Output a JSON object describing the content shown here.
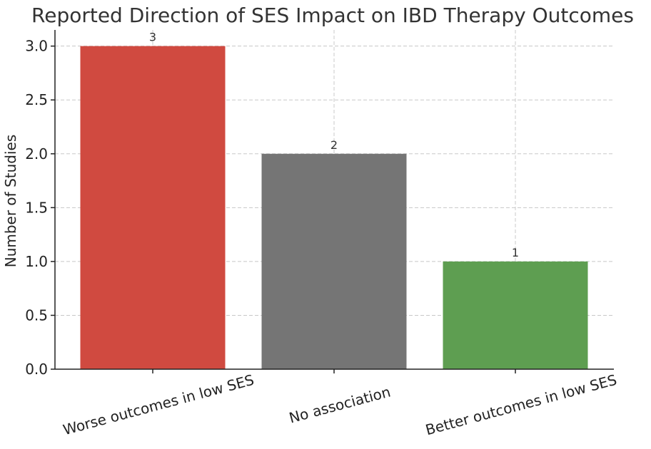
{
  "chart_data": {
    "type": "bar",
    "title": "Reported Direction of SES Impact on IBD Therapy Outcomes",
    "xlabel": "",
    "ylabel": "Number of Studies",
    "categories": [
      "Worse outcomes in low SES",
      "No association",
      "Better outcomes in low SES"
    ],
    "values": [
      3,
      2,
      1
    ],
    "data_labels": [
      "3",
      "2",
      "1"
    ],
    "colors": [
      "#d04a40",
      "#757575",
      "#5e9e51"
    ],
    "ylim": [
      0,
      3.15
    ],
    "yticks": [
      0.0,
      0.5,
      1.0,
      1.5,
      2.0,
      2.5,
      3.0
    ],
    "ytick_labels": [
      "0.0",
      "0.5",
      "1.0",
      "1.5",
      "2.0",
      "2.5",
      "3.0"
    ],
    "grid": true
  }
}
